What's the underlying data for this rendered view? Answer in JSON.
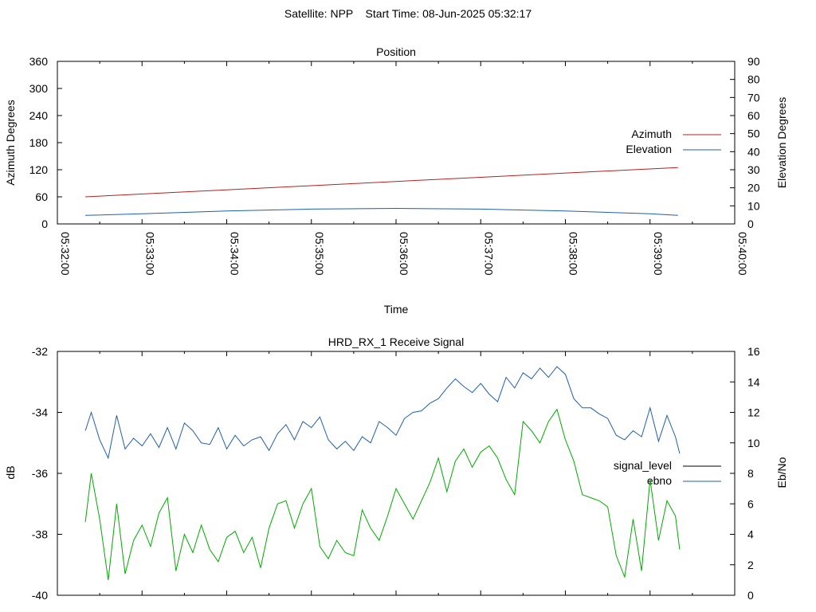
{
  "header": "Satellite: NPP    Start Time: 08-Jun-2025 05:32:17",
  "chart_data": [
    {
      "type": "line",
      "title": "Position",
      "xlabel": "Time",
      "ylabel": "Azimuth Degrees",
      "y2label": "Elevation Degrees",
      "xticks": [
        "05:32:00",
        "05:33:00",
        "05:34:00",
        "05:35:00",
        "05:36:00",
        "05:37:00",
        "05:38:00",
        "05:39:00",
        "05:40:00"
      ],
      "xlim_minutes": [
        0,
        8
      ],
      "ylim": [
        0,
        360
      ],
      "yticks": [
        "0",
        "60",
        "120",
        "180",
        "240",
        "300",
        "360"
      ],
      "y2lim": [
        0,
        90
      ],
      "y2ticks": [
        "0",
        "10",
        "20",
        "30",
        "40",
        "50",
        "60",
        "70",
        "80",
        "90"
      ],
      "legend_position": "right",
      "series": [
        {
          "name": "Azimuth",
          "axis": "y",
          "color": "#b22222",
          "x": [
            0.33,
            7.33
          ],
          "values": [
            60,
            125
          ]
        },
        {
          "name": "Elevation",
          "axis": "y2",
          "color": "#1f5faa",
          "x": [
            0.33,
            1.0,
            2.0,
            3.0,
            4.0,
            5.0,
            6.0,
            7.0,
            7.33
          ],
          "values": [
            4.7,
            5.6,
            7.2,
            8.2,
            8.6,
            8.2,
            7.2,
            5.6,
            4.7
          ]
        }
      ]
    },
    {
      "type": "line",
      "title": "HRD_RX_1 Receive Signal",
      "xlabel": "",
      "ylabel": "dB",
      "y2label": "Eb/No",
      "xlim_minutes": [
        0,
        8
      ],
      "ylim": [
        -40,
        -32
      ],
      "yticks": [
        "-32",
        "-34",
        "-36",
        "-38",
        "-40"
      ],
      "y2lim": [
        0,
        16
      ],
      "y2ticks": [
        "0",
        "2",
        "4",
        "6",
        "8",
        "10",
        "12",
        "14",
        "16"
      ],
      "legend_position": "right",
      "series": [
        {
          "name": "signal_level",
          "axis": "y",
          "color": "#000000",
          "x": [],
          "values": []
        },
        {
          "name": "ebno",
          "axis": "y2",
          "color": "#1f5faa",
          "x": [
            0.33,
            0.4,
            0.5,
            0.6,
            0.7,
            0.8,
            0.9,
            1.0,
            1.1,
            1.2,
            1.3,
            1.4,
            1.5,
            1.6,
            1.7,
            1.8,
            1.9,
            2.0,
            2.1,
            2.2,
            2.3,
            2.4,
            2.5,
            2.6,
            2.7,
            2.8,
            2.9,
            3.0,
            3.1,
            3.2,
            3.3,
            3.4,
            3.5,
            3.6,
            3.7,
            3.8,
            3.9,
            4.0,
            4.1,
            4.2,
            4.3,
            4.4,
            4.5,
            4.6,
            4.7,
            4.8,
            4.9,
            5.0,
            5.1,
            5.2,
            5.3,
            5.4,
            5.5,
            5.6,
            5.7,
            5.8,
            5.9,
            6.0,
            6.1,
            6.2,
            6.3,
            6.4,
            6.5,
            6.6,
            6.7,
            6.8,
            6.9,
            7.0,
            7.1,
            7.2,
            7.3,
            7.35
          ],
          "values": [
            10.8,
            12.0,
            10.2,
            9.0,
            11.8,
            9.6,
            10.3,
            9.8,
            10.6,
            9.7,
            11.0,
            9.6,
            11.3,
            10.8,
            10.0,
            9.9,
            11.0,
            9.6,
            10.5,
            9.8,
            10.2,
            10.4,
            9.5,
            10.6,
            11.2,
            10.2,
            11.4,
            11.0,
            11.7,
            10.2,
            9.6,
            10.1,
            9.5,
            10.4,
            10.0,
            11.4,
            11.0,
            10.5,
            11.6,
            12.0,
            12.1,
            12.6,
            12.9,
            13.6,
            14.2,
            13.7,
            13.3,
            13.9,
            13.2,
            12.7,
            14.3,
            13.6,
            14.6,
            14.2,
            14.9,
            14.3,
            15.0,
            14.5,
            12.9,
            12.3,
            12.3,
            11.9,
            11.6,
            10.5,
            10.2,
            10.8,
            10.4,
            12.3,
            10.1,
            11.8,
            10.4,
            9.3
          ]
        },
        {
          "name": "",
          "axis": "y",
          "color": "#00aa00",
          "x": [
            0.33,
            0.4,
            0.5,
            0.6,
            0.7,
            0.8,
            0.9,
            1.0,
            1.1,
            1.2,
            1.3,
            1.4,
            1.5,
            1.6,
            1.7,
            1.8,
            1.9,
            2.0,
            2.1,
            2.2,
            2.3,
            2.4,
            2.5,
            2.6,
            2.7,
            2.8,
            2.9,
            3.0,
            3.1,
            3.2,
            3.3,
            3.4,
            3.5,
            3.6,
            3.7,
            3.8,
            3.9,
            4.0,
            4.1,
            4.2,
            4.3,
            4.4,
            4.5,
            4.6,
            4.7,
            4.8,
            4.9,
            5.0,
            5.1,
            5.2,
            5.3,
            5.4,
            5.5,
            5.6,
            5.7,
            5.8,
            5.9,
            6.0,
            6.1,
            6.2,
            6.3,
            6.4,
            6.5,
            6.6,
            6.7,
            6.8,
            6.9,
            7.0,
            7.1,
            7.2,
            7.3,
            7.35
          ],
          "values": [
            -37.6,
            -36.0,
            -37.5,
            -39.5,
            -37.0,
            -39.3,
            -38.2,
            -37.7,
            -38.4,
            -37.3,
            -36.8,
            -39.2,
            -38.0,
            -38.6,
            -37.7,
            -38.5,
            -38.9,
            -38.1,
            -37.9,
            -38.6,
            -38.1,
            -39.1,
            -37.8,
            -37.0,
            -36.9,
            -37.8,
            -37.0,
            -36.5,
            -38.4,
            -38.8,
            -38.2,
            -38.6,
            -38.7,
            -37.2,
            -37.8,
            -38.2,
            -37.4,
            -36.5,
            -37.0,
            -37.5,
            -36.9,
            -36.3,
            -35.5,
            -36.6,
            -35.6,
            -35.2,
            -35.8,
            -35.3,
            -35.1,
            -35.5,
            -36.2,
            -36.7,
            -34.3,
            -34.6,
            -35.0,
            -34.3,
            -33.9,
            -34.9,
            -35.6,
            -36.7,
            -36.8,
            -36.9,
            -37.1,
            -38.7,
            -39.4,
            -37.5,
            -39.2,
            -36.2,
            -38.2,
            -36.9,
            -37.4,
            -38.5
          ]
        }
      ]
    }
  ]
}
